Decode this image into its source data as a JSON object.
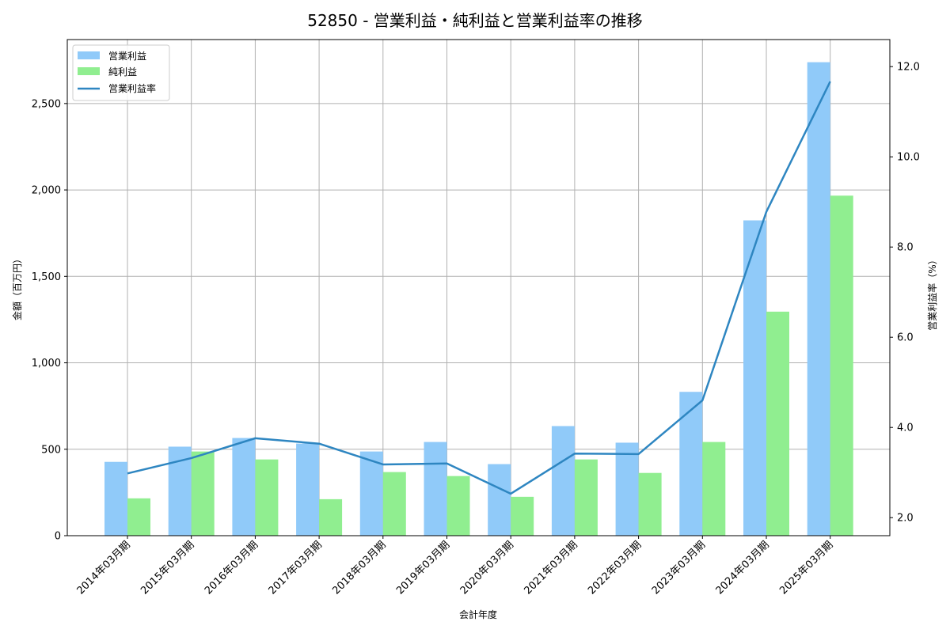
{
  "chart_data": {
    "type": "bar",
    "title": "52850 - 営業利益・純利益と営業利益率の推移",
    "xlabel": "会計年度",
    "ylabel": "金額（百万円）",
    "y2label": "営業利益率（%）",
    "categories": [
      "2014年03月期",
      "2015年03月期",
      "2016年03月期",
      "2017年03月期",
      "2018年03月期",
      "2019年03月期",
      "2020年03月期",
      "2021年03月期",
      "2022年03月期",
      "2023年03月期",
      "2024年03月期",
      "2025年03月期"
    ],
    "series": [
      {
        "name": "営業利益",
        "type": "bar",
        "axis": "left",
        "color": "#90CAF9",
        "values": [
          427,
          515,
          565,
          533,
          487,
          542,
          414,
          634,
          538,
          832,
          1824,
          2739
        ]
      },
      {
        "name": "純利益",
        "type": "bar",
        "axis": "left",
        "color": "#90EE90",
        "values": [
          216,
          487,
          441,
          211,
          368,
          345,
          225,
          441,
          363,
          542,
          1296,
          1967
        ]
      },
      {
        "name": "営業利益率",
        "type": "line",
        "axis": "right",
        "color": "#2E86C1",
        "values": [
          2.98,
          3.32,
          3.76,
          3.64,
          3.18,
          3.2,
          2.53,
          3.42,
          3.41,
          4.6,
          8.78,
          11.67
        ]
      }
    ],
    "ylim": [
      0,
      2870
    ],
    "y2lim": [
      1.6,
      12.6
    ],
    "yticks": [
      0,
      500,
      1000,
      1500,
      2000,
      2500
    ],
    "ytick_labels": [
      "0",
      "500",
      "1,000",
      "1,500",
      "2,000",
      "2,500"
    ],
    "y2ticks": [
      2.0,
      4.0,
      6.0,
      8.0,
      10.0,
      12.0
    ],
    "y2tick_labels": [
      "2.0",
      "4.0",
      "6.0",
      "8.0",
      "10.0",
      "12.0"
    ],
    "grid": true,
    "legend_position": "upper left"
  }
}
